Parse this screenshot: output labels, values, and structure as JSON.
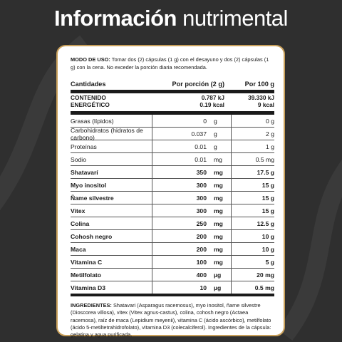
{
  "title": {
    "bold": "Información",
    "light": "nutrimental"
  },
  "usage": {
    "label": "MODO DE USO:",
    "text": " Tomar dos (2) cápsulas (1 g) con el desayuno y dos (2) cápsulas (1 g) con la cena. No exceder la porción diaria recomendada."
  },
  "table": {
    "headers": {
      "name": "Cantidades",
      "portion": "Por porción (2 g)",
      "per100": "Por 100 g"
    },
    "energy": {
      "label_line1": "CONTENIDO",
      "label_line2": "ENERGÉTICO",
      "portion_kj": "0.787 kJ",
      "portion_kcal": "0.19 kcal",
      "per100_kj": "39.330 kJ",
      "per100_kcal": "9 kcal"
    },
    "rows": [
      {
        "name": "Grasas (lípidos)",
        "num": "0",
        "unit": "g",
        "per100": "0 g",
        "bold": false
      },
      {
        "name": "Carbohidratos (hidratos de carbono)",
        "num": "0.037",
        "unit": "g",
        "per100": "2 g",
        "bold": false
      },
      {
        "name": "Proteínas",
        "num": "0.01",
        "unit": "g",
        "per100": "1 g",
        "bold": false
      },
      {
        "name": "Sodio",
        "num": "0.01",
        "unit": "mg",
        "per100": "0.5 mg",
        "bold": false
      },
      {
        "name": "Shatavarí",
        "num": "350",
        "unit": "mg",
        "per100": "17.5 g",
        "bold": true
      },
      {
        "name": "Myo inositol",
        "num": "300",
        "unit": "mg",
        "per100": "15 g",
        "bold": true
      },
      {
        "name": "Ñame silvestre",
        "num": "300",
        "unit": "mg",
        "per100": "15 g",
        "bold": true
      },
      {
        "name": "Vitex",
        "num": "300",
        "unit": "mg",
        "per100": "15 g",
        "bold": true
      },
      {
        "name": "Colina",
        "num": "250",
        "unit": "mg",
        "per100": "12.5 g",
        "bold": true
      },
      {
        "name": "Cohosh negro",
        "num": "200",
        "unit": "mg",
        "per100": "10 g",
        "bold": true
      },
      {
        "name": "Maca",
        "num": "200",
        "unit": "mg",
        "per100": "10 g",
        "bold": true
      },
      {
        "name": "Vitamina C",
        "num": "100",
        "unit": "mg",
        "per100": "5 g",
        "bold": true
      },
      {
        "name": "Metilfolato",
        "num": "400",
        "unit": "µg",
        "per100": "20 mg",
        "bold": true
      },
      {
        "name": "Vitamina D3",
        "num": "10",
        "unit": "µg",
        "per100": "0.5 mg",
        "bold": true
      }
    ]
  },
  "ingredients": {
    "label": "INGREDIENTES:",
    "text": " Shatavari (Asparagus racemosus), myo inositol, ñame silvestre (Dioscorea villosa), vitex (Vitex agnus-castus), colina, cohosh negro (Actaea racemosa), raíz de maca (Lepidium meyenii), vitamina C (ácido ascórbico), metilfolato (ácido 5-metiltetrahidrofolato), vitamina D3 (colecalciferol). Ingredientes de la cápsula: gelatina y agua purificada."
  },
  "colors": {
    "background": "#2f2f2f",
    "card_border": "#c9a05a",
    "text": "#1a1a1a"
  }
}
